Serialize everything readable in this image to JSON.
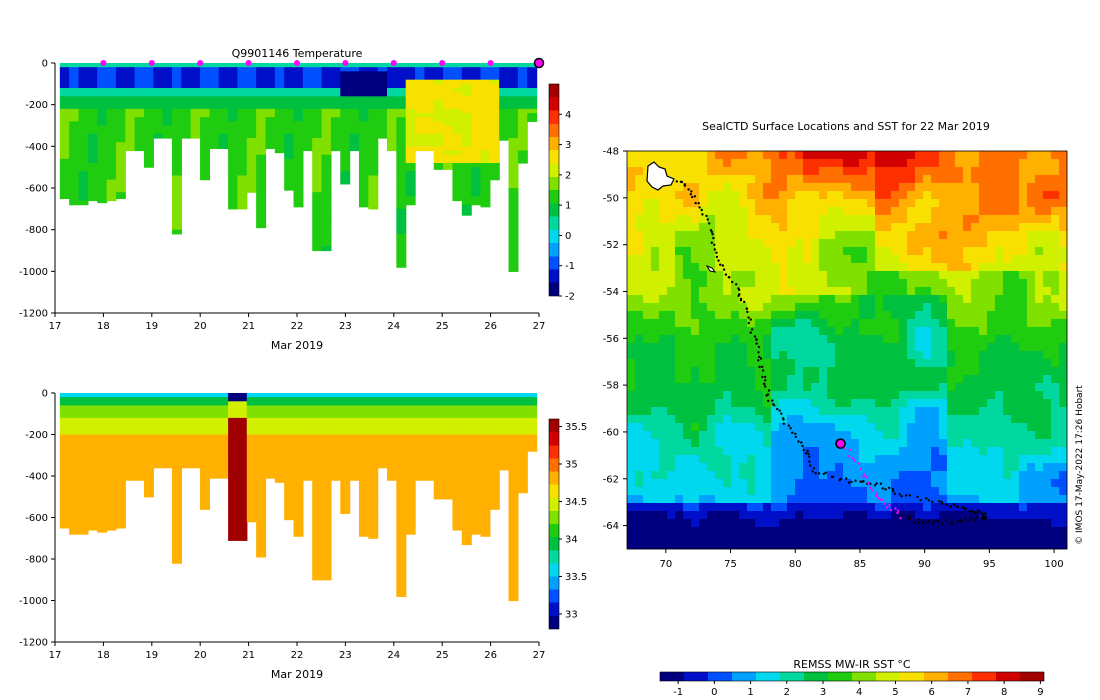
{
  "credit": "© IMOS 17-May-2022 17:26 Hobart",
  "palette": [
    "#00007f",
    "#0010c8",
    "#0050ff",
    "#00a0ff",
    "#00d8f0",
    "#00d8a0",
    "#00c040",
    "#20cc10",
    "#80e000",
    "#d0f000",
    "#f8e000",
    "#ffb000",
    "#ff7000",
    "#ff3000",
    "#d00000",
    "#a00000"
  ],
  "chart_data": [
    {
      "id": "temperature",
      "type": "heatmap",
      "title": "Q9901146  Temperature",
      "xlabel": "Mar 2019",
      "ylabel": "",
      "xlim": [
        17,
        27
      ],
      "ylim": [
        -1200,
        0
      ],
      "x_ticks": [
        17,
        18,
        19,
        20,
        21,
        22,
        23,
        24,
        25,
        26,
        27
      ],
      "y_ticks": [
        0,
        -200,
        -400,
        -600,
        -800,
        -1000,
        -1200
      ],
      "colorbar": {
        "min": -2,
        "max": 5,
        "ticks": [
          -2,
          -1,
          0,
          1,
          2,
          3,
          4
        ]
      },
      "profile_max_depth": [
        -650,
        -680,
        -680,
        -660,
        -670,
        -660,
        -650,
        -420,
        -420,
        -500,
        -360,
        -360,
        -820,
        -360,
        -360,
        -560,
        -410,
        -410,
        -700,
        -700,
        -620,
        -790,
        -410,
        -430,
        -610,
        -690,
        -420,
        -900,
        -900,
        -420,
        -580,
        -420,
        -690,
        -700,
        -360,
        -420,
        -980,
        -680,
        -420,
        -420,
        -510,
        -510,
        -660,
        -730,
        -680,
        -690,
        -560,
        -370,
        -1000,
        -480,
        -280
      ],
      "surface_markers_x": [
        18,
        19,
        20,
        21,
        22,
        23,
        24,
        25,
        26
      ],
      "last_marker_x": 27
    },
    {
      "id": "salinity",
      "type": "heatmap",
      "title": "",
      "xlabel": "Mar 2019",
      "ylabel": "",
      "xlim": [
        17,
        27
      ],
      "ylim": [
        -1200,
        0
      ],
      "x_ticks": [
        17,
        18,
        19,
        20,
        21,
        22,
        23,
        24,
        25,
        26,
        27
      ],
      "y_ticks": [
        0,
        -200,
        -400,
        -600,
        -800,
        -1000,
        -1200
      ],
      "colorbar": {
        "min": 32.8,
        "max": 35.6,
        "ticks": [
          33,
          33.5,
          34,
          34.5,
          35,
          35.5
        ]
      },
      "profile_max_depth": [
        -650,
        -680,
        -680,
        -660,
        -670,
        -660,
        -650,
        -420,
        -420,
        -500,
        -360,
        -360,
        -820,
        -360,
        -360,
        -560,
        -410,
        -410,
        -710,
        -710,
        -620,
        -790,
        -410,
        -430,
        -610,
        -690,
        -420,
        -900,
        -900,
        -420,
        -580,
        -420,
        -690,
        -700,
        -360,
        -420,
        -980,
        -680,
        -420,
        -420,
        -510,
        -510,
        -660,
        -730,
        -680,
        -690,
        -560,
        -370,
        -1000,
        -480,
        -280
      ]
    },
    {
      "id": "sst-map",
      "type": "heatmap",
      "title": "SealCTD Surface Locations and SST for 22 Mar 2019",
      "xlabel": "",
      "ylabel": "",
      "xlim": [
        67,
        101
      ],
      "ylim": [
        -65,
        -48
      ],
      "x_ticks": [
        70,
        75,
        80,
        85,
        90,
        95,
        100
      ],
      "y_ticks": [
        -48,
        -50,
        -52,
        -54,
        -56,
        -58,
        -60,
        -62,
        -64
      ],
      "colorbar": {
        "label": "REMSS MW-IR SST °C",
        "min": -1.5,
        "max": 9.1,
        "ticks": [
          -1,
          0,
          1,
          2,
          3,
          4,
          5,
          6,
          7,
          8,
          9
        ]
      },
      "track": [
        [
          71.0,
          -49.2
        ],
        [
          72.3,
          -50.0
        ],
        [
          73.4,
          -51.3
        ],
        [
          74.0,
          -52.7
        ],
        [
          75.5,
          -53.8
        ],
        [
          76.3,
          -54.9
        ],
        [
          77.0,
          -56.3
        ],
        [
          77.5,
          -57.6
        ],
        [
          78.0,
          -58.6
        ],
        [
          79.2,
          -59.6
        ],
        [
          80.8,
          -60.7
        ],
        [
          81.5,
          -61.7
        ],
        [
          84.2,
          -62.1
        ],
        [
          86.3,
          -62.2
        ],
        [
          88.0,
          -62.7
        ],
        [
          91.0,
          -63.0
        ],
        [
          93.1,
          -63.3
        ],
        [
          94.7,
          -63.5
        ],
        [
          94.5,
          -63.7
        ],
        [
          92.5,
          -63.8
        ],
        [
          90.0,
          -63.9
        ],
        [
          88.2,
          -63.6
        ],
        [
          86.6,
          -62.9
        ],
        [
          85.4,
          -61.9
        ],
        [
          83.7,
          -60.5
        ]
      ],
      "current_position": [
        83.5,
        -60.5
      ]
    }
  ]
}
